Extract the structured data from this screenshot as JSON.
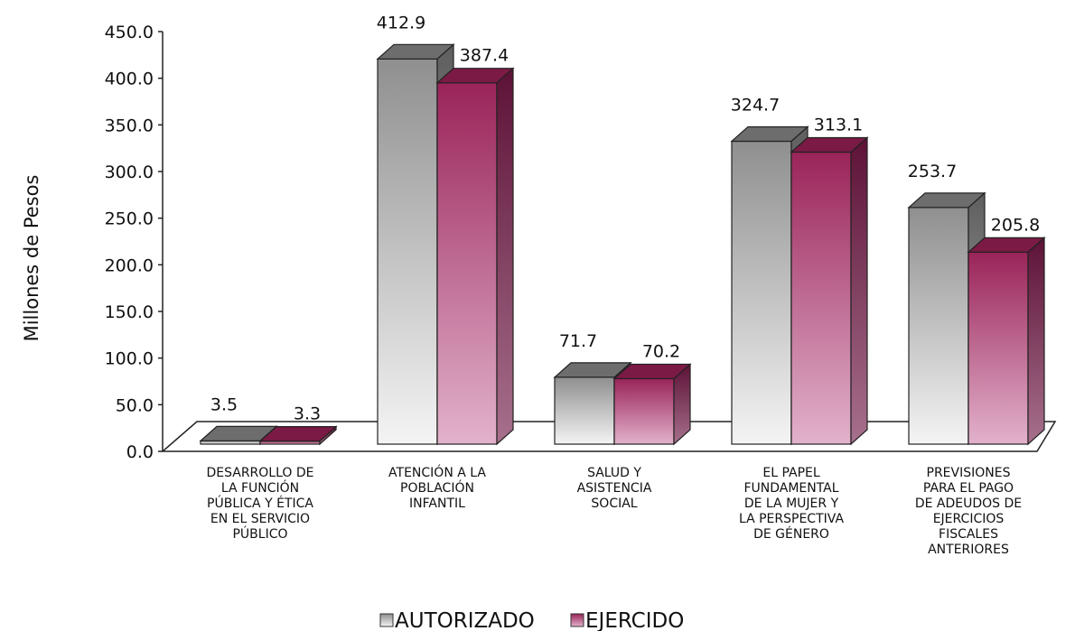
{
  "chart_data": {
    "type": "bar",
    "ylabel": "Millones de Pesos",
    "xlabel": "",
    "ylim": [
      0,
      450
    ],
    "yticks": [
      "0.0",
      "50.0",
      "100.0",
      "150.0",
      "200.0",
      "250.0",
      "300.0",
      "350.0",
      "400.0",
      "450.0"
    ],
    "categories": [
      [
        "DESARROLLO DE",
        "LA FUNCIÓN",
        "PÚBLICA Y ÉTICA",
        "EN EL SERVICIO",
        "PÚBLICO"
      ],
      [
        "ATENCIÓN A LA",
        "POBLACIÓN",
        "INFANTIL"
      ],
      [
        "SALUD Y",
        "ASISTENCIA",
        "SOCIAL"
      ],
      [
        "EL PAPEL",
        "FUNDAMENTAL",
        "DE LA MUJER Y",
        "LA PERSPECTIVA",
        "DE GÉNERO"
      ],
      [
        "PREVISIONES",
        "PARA EL PAGO",
        "DE ADEUDOS DE",
        "EJERCICIOS",
        "FISCALES",
        "ANTERIORES"
      ]
    ],
    "series": [
      {
        "name": "AUTORIZADO",
        "values": [
          3.5,
          412.9,
          71.7,
          324.7,
          253.7
        ],
        "labels": [
          "3.5",
          "412.9",
          "71.7",
          "324.7",
          "253.7"
        ],
        "color": "#9a9a9a"
      },
      {
        "name": "EJERCIDO",
        "values": [
          3.3,
          387.4,
          70.2,
          313.1,
          205.8
        ],
        "labels": [
          "3.3",
          "387.4",
          "70.2",
          "313.1",
          "205.8"
        ],
        "color": "#9b2a5e"
      }
    ],
    "legend_position": "bottom",
    "grid": false,
    "style": "3d-column"
  }
}
